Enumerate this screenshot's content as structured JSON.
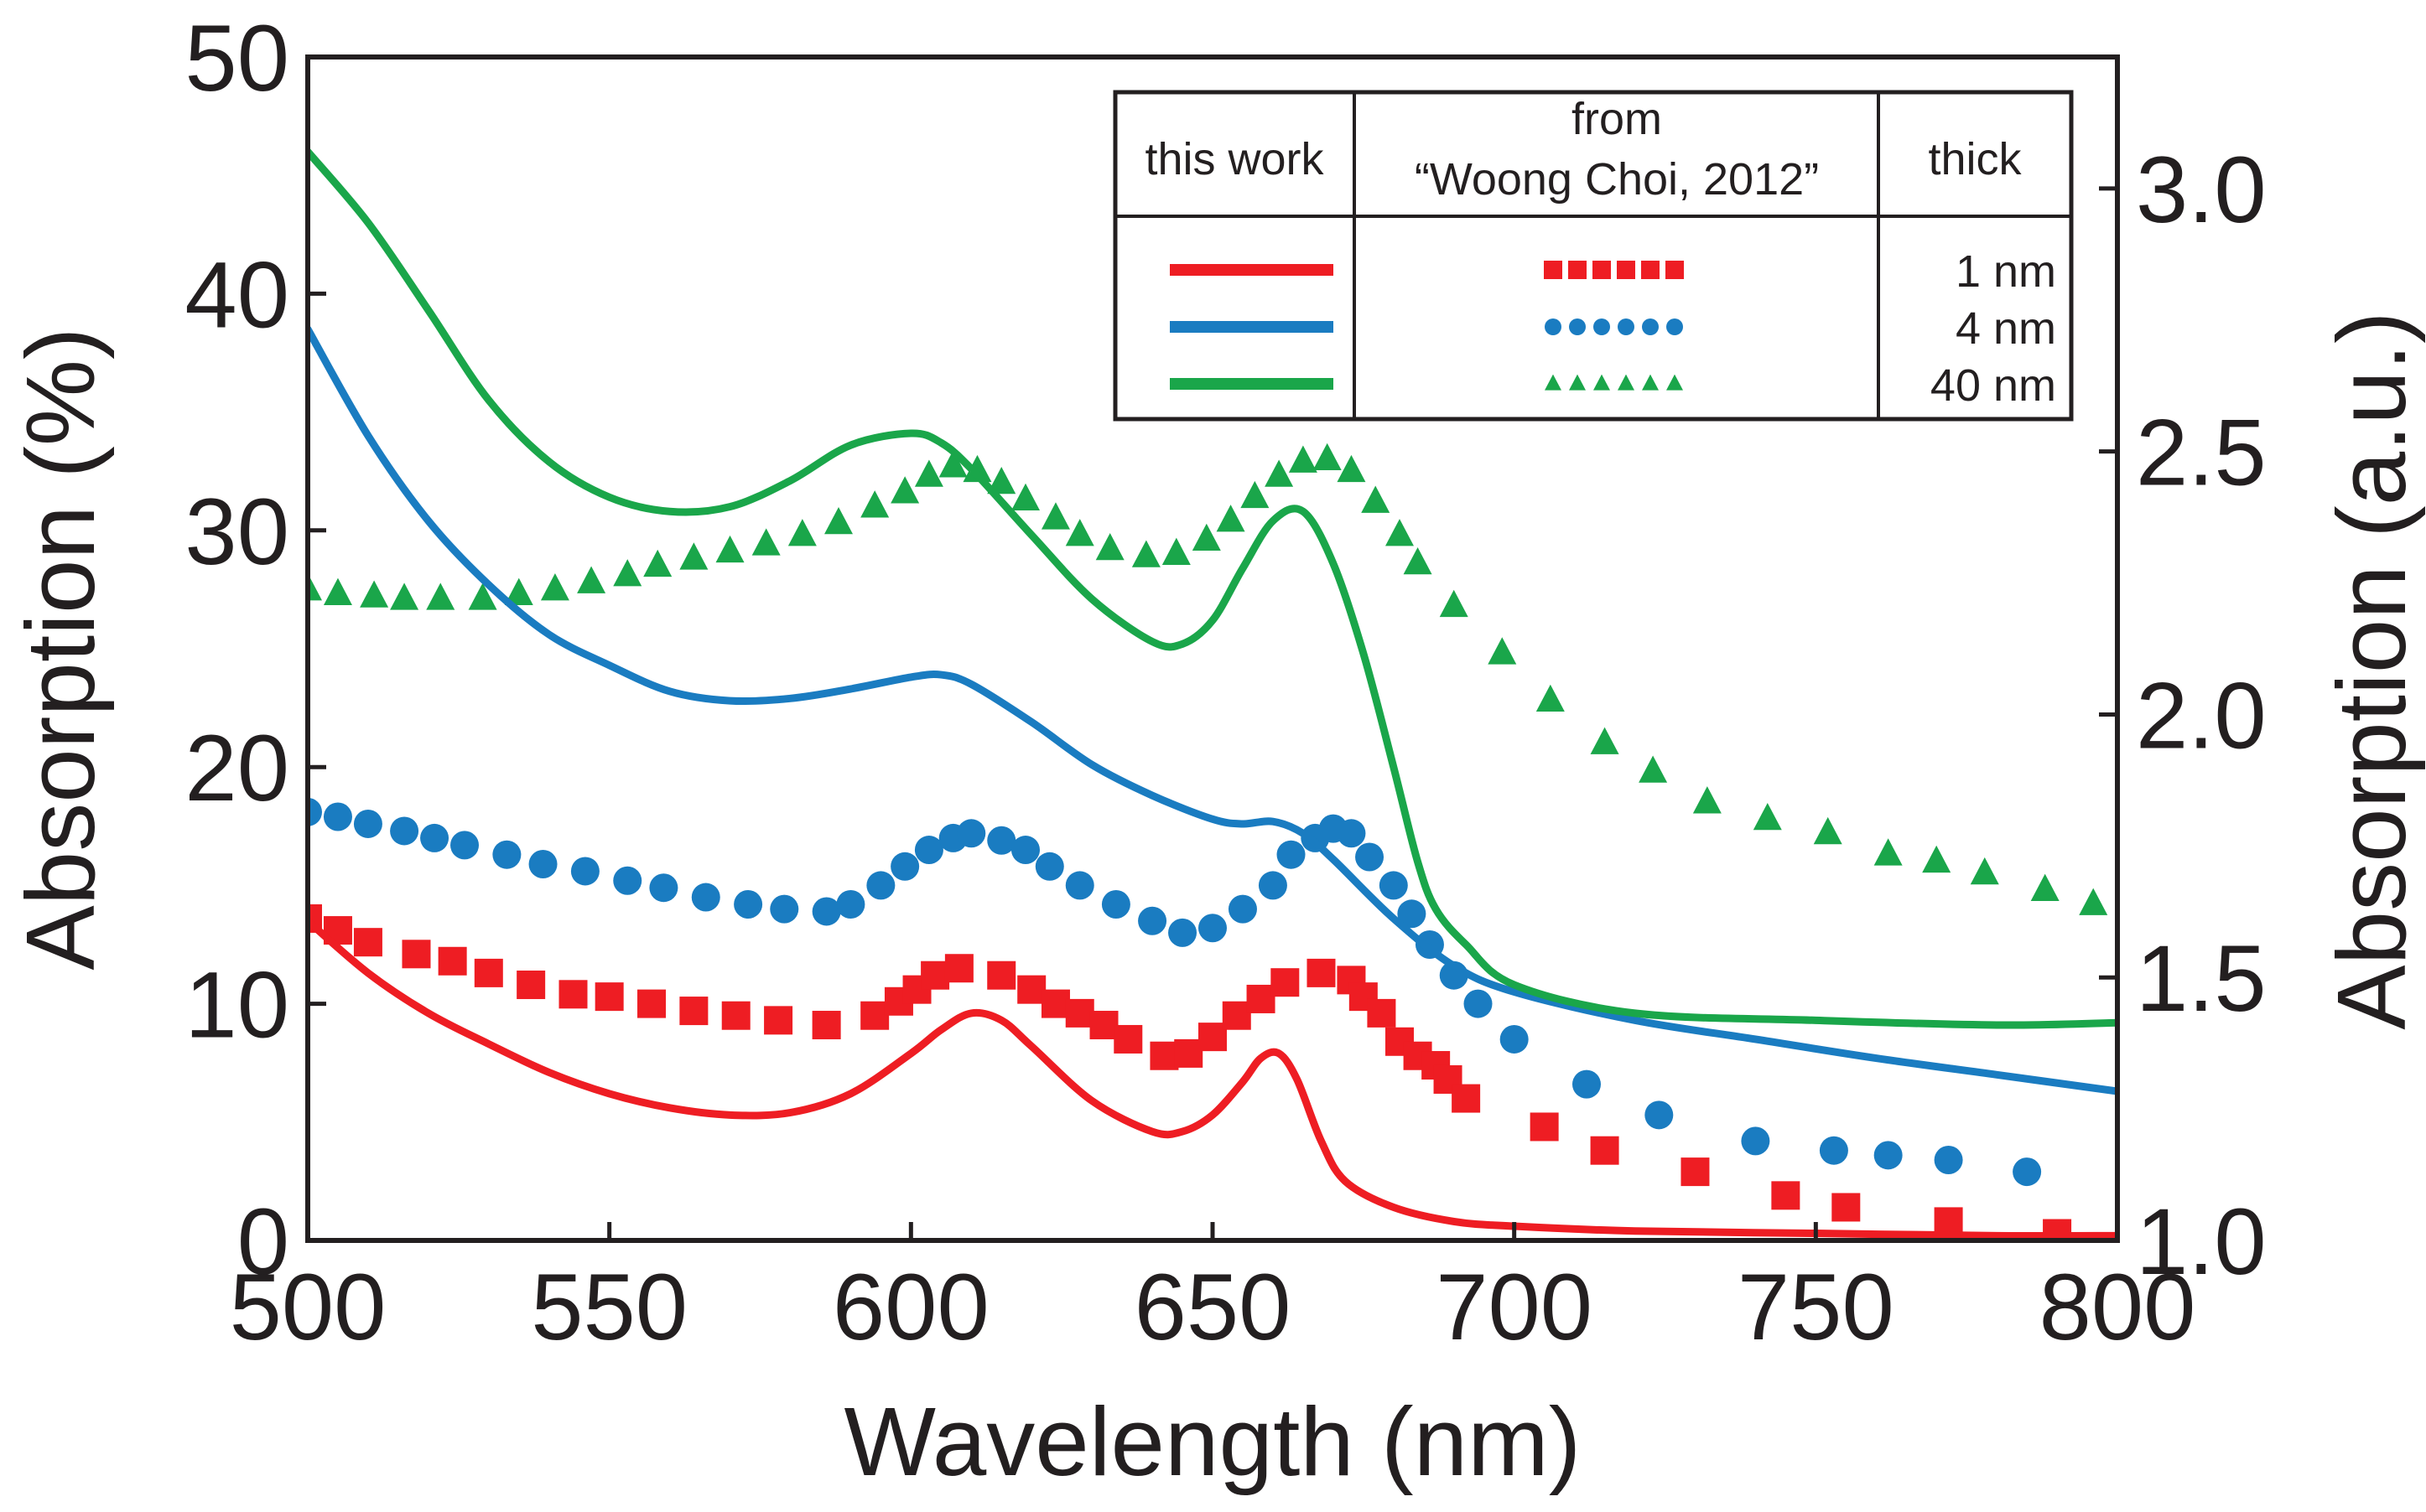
{
  "chart_data": {
    "type": "line",
    "title": "",
    "xlabel": "Wavelength (nm)",
    "ylabel": "Absorption (%)",
    "ylabel_right": "Absorption (a.u.)",
    "xlim": [
      500,
      800
    ],
    "ylim": [
      0,
      50
    ],
    "ylim_right": [
      1.0,
      3.25
    ],
    "x_ticks": [
      500,
      550,
      600,
      650,
      700,
      750,
      800
    ],
    "y_ticks": [
      0,
      10,
      20,
      30,
      40,
      50
    ],
    "y_ticks_right": [
      1.0,
      1.5,
      2.0,
      2.5,
      3.0
    ],
    "x_tick_labels": [
      "500",
      "550",
      "600",
      "650",
      "700",
      "750",
      "800"
    ],
    "y_tick_labels": [
      "0",
      "10",
      "20",
      "30",
      "40",
      "50"
    ],
    "y_tick_labels_right": [
      "1.0",
      "1.5",
      "2.0",
      "2.5",
      "3.0"
    ],
    "grid": false,
    "legend": {
      "position": "top-right",
      "headers": [
        "this work",
        "from",
        "“Woong Choi, 2012”",
        "thick"
      ],
      "rows": [
        {
          "thickness": "1 nm",
          "color": "#ee1d23",
          "marker": "square"
        },
        {
          "thickness": "4 nm",
          "color": "#1a7cc1",
          "marker": "circle"
        },
        {
          "thickness": "40 nm",
          "color": "#1aa64a",
          "marker": "triangle"
        }
      ]
    },
    "series": [
      {
        "name": "this work 1 nm",
        "axis": "left",
        "style": "line",
        "color": "#ee1d23",
        "x": [
          500,
          510,
          520,
          530,
          540,
          550,
          560,
          570,
          580,
          590,
          600,
          605,
          610,
          615,
          620,
          630,
          640,
          645,
          650,
          655,
          658,
          661,
          664,
          668,
          672,
          680,
          690,
          700,
          720,
          750,
          780,
          800
        ],
        "y": [
          13.5,
          11.3,
          9.6,
          8.3,
          7.1,
          6.2,
          5.6,
          5.3,
          5.4,
          6.2,
          7.9,
          8.9,
          9.6,
          9.3,
          8.2,
          5.9,
          4.6,
          4.6,
          5.3,
          6.7,
          7.7,
          7.9,
          6.8,
          4.2,
          2.5,
          1.4,
          0.8,
          0.6,
          0.4,
          0.3,
          0.2,
          0.2
        ]
      },
      {
        "name": "this work 4 nm",
        "axis": "left",
        "style": "line",
        "color": "#1a7cc1",
        "x": [
          500,
          510,
          520,
          530,
          540,
          550,
          560,
          570,
          580,
          590,
          600,
          605,
          610,
          620,
          630,
          640,
          650,
          655,
          660,
          665,
          670,
          680,
          690,
          700,
          720,
          740,
          760,
          780,
          800
        ],
        "y": [
          38.5,
          34.0,
          30.4,
          27.7,
          25.6,
          24.3,
          23.2,
          22.8,
          22.9,
          23.3,
          23.8,
          23.9,
          23.5,
          21.9,
          20.1,
          18.8,
          17.8,
          17.6,
          17.7,
          17.2,
          16.1,
          13.6,
          11.6,
          10.5,
          9.3,
          8.5,
          7.7,
          7.0,
          6.3
        ]
      },
      {
        "name": "this work 40 nm",
        "axis": "left",
        "style": "line",
        "color": "#1aa64a",
        "x": [
          500,
          510,
          520,
          530,
          540,
          550,
          560,
          570,
          580,
          590,
          600,
          605,
          610,
          620,
          630,
          640,
          645,
          650,
          655,
          660,
          665,
          670,
          675,
          680,
          684,
          687,
          692,
          700,
          720,
          750,
          780,
          800
        ],
        "y": [
          46.0,
          43.0,
          39.3,
          35.5,
          32.9,
          31.4,
          30.8,
          31.0,
          32.1,
          33.6,
          34.1,
          33.7,
          32.6,
          29.8,
          27.1,
          25.3,
          25.2,
          26.2,
          28.4,
          30.4,
          30.8,
          28.6,
          24.8,
          20.0,
          16.0,
          14.0,
          12.5,
          10.8,
          9.6,
          9.3,
          9.1,
          9.2
        ]
      },
      {
        "name": "Woong Choi, 2012 1 nm",
        "axis": "left",
        "style": "markers",
        "marker": "square",
        "color": "#ee1d23",
        "x": [
          500,
          505,
          510,
          518,
          524,
          530,
          537,
          544,
          550,
          557,
          564,
          571,
          578,
          586,
          594,
          598,
          601,
          604,
          608,
          615,
          620,
          624,
          628,
          632,
          636,
          642,
          646,
          650,
          654,
          658,
          662,
          668,
          673,
          675,
          678,
          681,
          684,
          687,
          689,
          692,
          705,
          715,
          730,
          745,
          755,
          772,
          790
        ],
        "y": [
          13.6,
          13.1,
          12.6,
          12.1,
          11.8,
          11.3,
          10.8,
          10.4,
          10.3,
          10.0,
          9.7,
          9.5,
          9.3,
          9.1,
          9.5,
          10.1,
          10.6,
          11.2,
          11.5,
          11.2,
          10.6,
          10.0,
          9.6,
          9.1,
          8.5,
          7.8,
          7.9,
          8.6,
          9.5,
          10.2,
          10.9,
          11.3,
          11.0,
          10.3,
          9.6,
          8.4,
          7.8,
          7.4,
          6.8,
          6.0,
          4.8,
          3.8,
          2.9,
          1.9,
          1.4,
          0.8,
          0.3
        ]
      },
      {
        "name": "Woong Choi, 2012 4 nm",
        "axis": "left",
        "style": "markers",
        "marker": "circle",
        "color": "#1a7cc1",
        "x": [
          500,
          505,
          510,
          516,
          521,
          526,
          533,
          539,
          546,
          553,
          559,
          566,
          573,
          579,
          586,
          590,
          595,
          599,
          603,
          607,
          610,
          615,
          619,
          623,
          628,
          634,
          640,
          645,
          650,
          655,
          660,
          663,
          667,
          670,
          673,
          676,
          680,
          683,
          686,
          690,
          694,
          700,
          712,
          724,
          740,
          753,
          762,
          772,
          785
        ],
        "y": [
          18.1,
          17.9,
          17.6,
          17.3,
          17.0,
          16.7,
          16.3,
          15.9,
          15.6,
          15.2,
          14.9,
          14.5,
          14.2,
          14.0,
          13.9,
          14.2,
          15.0,
          15.8,
          16.5,
          17.0,
          17.2,
          16.9,
          16.5,
          15.8,
          15.0,
          14.2,
          13.5,
          13.0,
          13.2,
          14.0,
          15.0,
          16.3,
          17.0,
          17.4,
          17.2,
          16.2,
          15.0,
          13.8,
          12.5,
          11.2,
          10.0,
          8.5,
          6.6,
          5.3,
          4.2,
          3.8,
          3.6,
          3.4,
          2.9
        ]
      },
      {
        "name": "Woong Choi, 2012 40 nm",
        "axis": "left",
        "style": "markers",
        "marker": "triangle",
        "color": "#1aa64a",
        "x": [
          500,
          505,
          511,
          516,
          522,
          529,
          535,
          541,
          547,
          553,
          558,
          564,
          570,
          576,
          582,
          588,
          594,
          599,
          603,
          607,
          611,
          615,
          619,
          624,
          628,
          633,
          639,
          644,
          649,
          653,
          657,
          661,
          665,
          669,
          673,
          677,
          681,
          684,
          690,
          698,
          706,
          715,
          723,
          732,
          742,
          752,
          762,
          770,
          778,
          788,
          796
        ],
        "y": [
          27.5,
          27.3,
          27.2,
          27.1,
          27.1,
          27.1,
          27.3,
          27.5,
          27.8,
          28.1,
          28.5,
          28.8,
          29.1,
          29.4,
          29.8,
          30.3,
          31.0,
          31.6,
          32.3,
          32.7,
          32.5,
          32.0,
          31.3,
          30.5,
          29.8,
          29.2,
          28.9,
          29.0,
          29.6,
          30.4,
          31.4,
          32.3,
          32.9,
          33.0,
          32.5,
          31.2,
          29.8,
          28.6,
          26.8,
          24.8,
          22.8,
          21.0,
          19.8,
          18.5,
          17.8,
          17.2,
          16.3,
          16.0,
          15.5,
          14.8,
          14.2
        ]
      }
    ]
  }
}
